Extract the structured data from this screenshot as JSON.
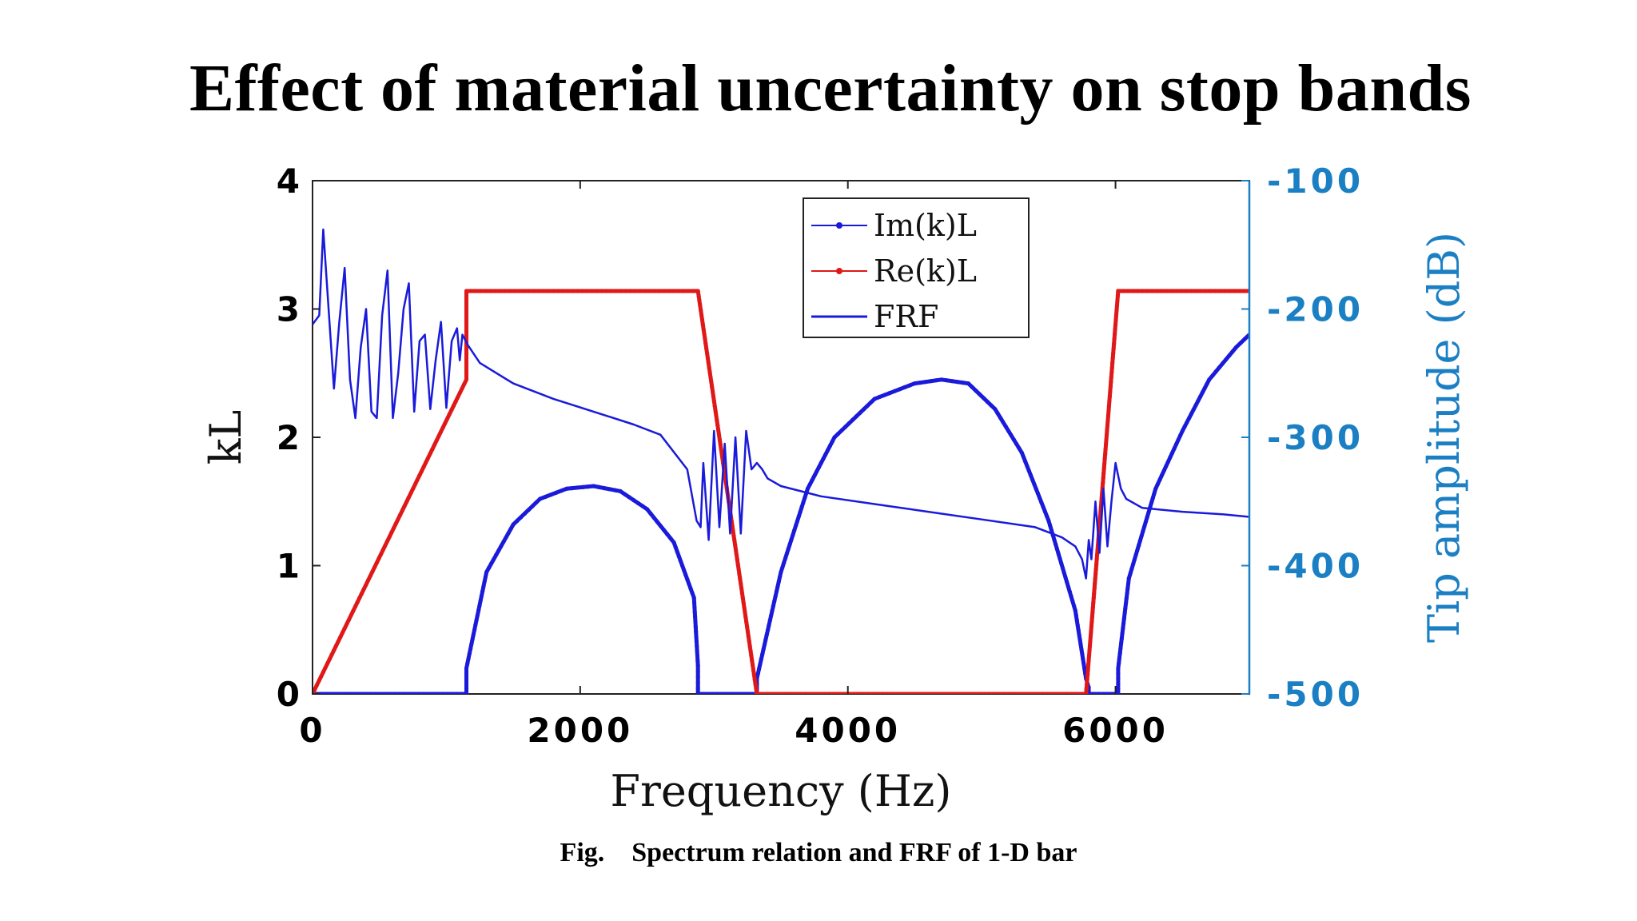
{
  "title": "Effect of material uncertainty on stop bands",
  "caption": "Fig.    Spectrum relation and FRF of 1-D bar",
  "chart_data": {
    "type": "line",
    "xlabel": "Frequency (Hz)",
    "ylabel": "kL",
    "y2label": "Tip amplitude (dB)",
    "xlim": [
      0,
      7000
    ],
    "ylim": [
      0,
      4
    ],
    "y2lim": [
      -500,
      -100
    ],
    "xticks": [
      "0",
      "2000",
      "4000",
      "6000"
    ],
    "yticks": [
      "0",
      "1",
      "2",
      "3",
      "4"
    ],
    "y2ticks": [
      "-100",
      "-200",
      "-300",
      "-400",
      "-500"
    ],
    "legend_position": "top-right",
    "colors": {
      "im": "#1a1adb",
      "re": "#e01818",
      "frf": "#1a1adb",
      "right_axis": "#1b7fc4"
    },
    "series": [
      {
        "name": "Im(k)L",
        "axis": "left",
        "x": [
          0,
          1150,
          1150,
          1300,
          1500,
          1700,
          1900,
          2100,
          2300,
          2500,
          2700,
          2850,
          2880,
          2880,
          3320,
          3320,
          3500,
          3700,
          3900,
          4200,
          4500,
          4700,
          4900,
          5100,
          5300,
          5500,
          5700,
          5780,
          5800,
          5800,
          6020,
          6020,
          6100,
          6300,
          6500,
          6700,
          6900,
          7000
        ],
        "values": [
          0,
          0,
          0.2,
          0.95,
          1.32,
          1.52,
          1.6,
          1.62,
          1.58,
          1.44,
          1.18,
          0.75,
          0.22,
          0,
          0,
          0.12,
          0.95,
          1.6,
          2.0,
          2.3,
          2.42,
          2.45,
          2.42,
          2.22,
          1.88,
          1.35,
          0.65,
          0.12,
          0.05,
          0,
          0,
          0.2,
          0.9,
          1.6,
          2.05,
          2.45,
          2.7,
          2.8
        ]
      },
      {
        "name": "Re(k)L",
        "axis": "left",
        "x": [
          0,
          1150,
          1150,
          2880,
          3320,
          3320,
          5780,
          6020,
          6020,
          7000
        ],
        "values": [
          0,
          2.45,
          3.14,
          3.14,
          0,
          0,
          0,
          3.14,
          3.14,
          3.14
        ]
      },
      {
        "name": "FRF",
        "axis": "right",
        "x": [
          0,
          50,
          80,
          120,
          160,
          200,
          240,
          280,
          320,
          360,
          400,
          440,
          480,
          520,
          560,
          600,
          640,
          680,
          720,
          760,
          800,
          840,
          880,
          920,
          960,
          1000,
          1040,
          1080,
          1100,
          1120,
          1160,
          1250,
          1500,
          1800,
          2100,
          2400,
          2600,
          2800,
          2870,
          2900,
          2920,
          2960,
          3000,
          3040,
          3080,
          3120,
          3160,
          3200,
          3240,
          3280,
          3320,
          3360,
          3400,
          3500,
          3800,
          4200,
          4600,
          5000,
          5400,
          5600,
          5700,
          5750,
          5780,
          5800,
          5820,
          5850,
          5880,
          5910,
          5940,
          5970,
          6000,
          6040,
          6080,
          6200,
          6500,
          6800,
          7000
        ],
        "values": [
          -212,
          -205,
          -138,
          -200,
          -262,
          -210,
          -168,
          -255,
          -285,
          -230,
          -200,
          -280,
          -285,
          -205,
          -170,
          -285,
          -250,
          -200,
          -180,
          -280,
          -225,
          -220,
          -278,
          -240,
          -210,
          -277,
          -225,
          -215,
          -240,
          -220,
          -228,
          -242,
          -258,
          -270,
          -280,
          -290,
          -298,
          -325,
          -365,
          -370,
          -320,
          -380,
          -295,
          -370,
          -305,
          -375,
          -300,
          -375,
          -295,
          -325,
          -320,
          -325,
          -332,
          -338,
          -346,
          -352,
          -358,
          -364,
          -370,
          -378,
          -385,
          -395,
          -410,
          -380,
          -395,
          -350,
          -390,
          -340,
          -385,
          -350,
          -320,
          -340,
          -348,
          -355,
          -358,
          -360,
          -362
        ]
      }
    ]
  }
}
